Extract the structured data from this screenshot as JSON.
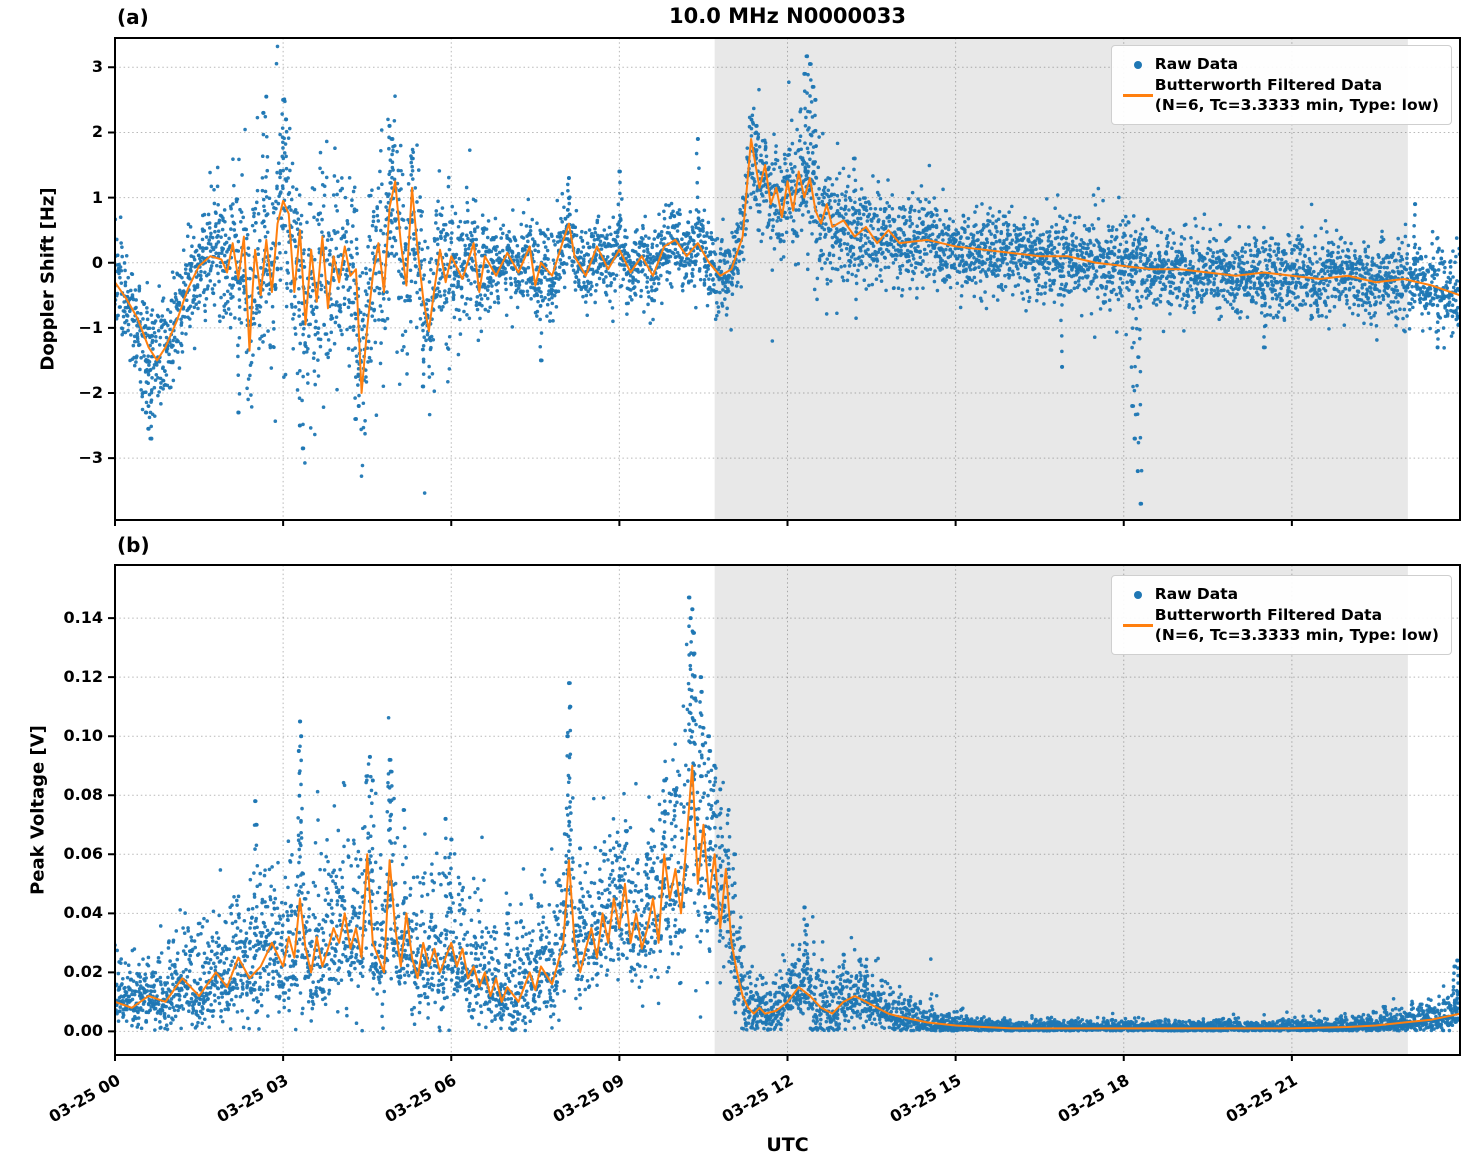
{
  "title": "10.0 MHz N0000033",
  "xlabel": "UTC",
  "panel_a": {
    "tag": "(a)",
    "ylabel": "Doppler Shift [Hz]"
  },
  "panel_b": {
    "tag": "(b)",
    "ylabel": "Peak Voltage [V]"
  },
  "legend": {
    "raw_label": "Raw Data",
    "filtered_label_line1": "Butterworth Filtered Data",
    "filtered_label_line2": "(N=6, Tc=3.3333 min, Type: low)"
  },
  "colors": {
    "raw": "#1f77b4",
    "filtered": "#ff7f0e",
    "shade": "rgba(0,0,0,0.09)",
    "grid": "rgba(0,0,0,0.28)",
    "spine": "#000000"
  },
  "x_axis": {
    "label": "UTC",
    "range_hours": [
      0,
      24
    ],
    "tick_hours": [
      0,
      3,
      6,
      9,
      12,
      15,
      18,
      21
    ],
    "tick_labels": [
      "03-25 00",
      "03-25 03",
      "03-25 06",
      "03-25 09",
      "03-25 12",
      "03-25 15",
      "03-25 18",
      "03-25 21"
    ],
    "shaded_region_hours": [
      10.7,
      23.07
    ]
  },
  "chart_data": [
    {
      "type": "scatter",
      "panel": "a",
      "ylabel": "Doppler Shift [Hz]",
      "ylim": [
        -3.95,
        3.45
      ],
      "ytick_values": [
        -3,
        -2,
        -1,
        0,
        1,
        2,
        3
      ],
      "ytick_labels": [
        "−3",
        "−2",
        "−1",
        "0",
        "1",
        "2",
        "3"
      ],
      "legend_position": "upper right",
      "grid": true,
      "series": [
        {
          "name": "Raw Data",
          "type": "scatter"
        },
        {
          "name": "Butterworth Filtered Data (N=6, Tc=3.3333 min, Type: low)",
          "type": "line"
        }
      ],
      "filtered_line": {
        "x": [
          0,
          0.2,
          0.4,
          0.6,
          0.75,
          0.9,
          1.1,
          1.3,
          1.5,
          1.7,
          1.9,
          2.0,
          2.1,
          2.2,
          2.3,
          2.4,
          2.45,
          2.5,
          2.6,
          2.7,
          2.8,
          2.9,
          3.0,
          3.1,
          3.2,
          3.3,
          3.4,
          3.5,
          3.6,
          3.7,
          3.8,
          3.9,
          4.0,
          4.1,
          4.2,
          4.3,
          4.4,
          4.5,
          4.6,
          4.7,
          4.8,
          4.9,
          5.0,
          5.1,
          5.2,
          5.3,
          5.4,
          5.5,
          5.6,
          5.7,
          5.8,
          5.9,
          6.0,
          6.2,
          6.4,
          6.5,
          6.6,
          6.8,
          7.0,
          7.2,
          7.4,
          7.5,
          7.6,
          7.8,
          8.0,
          8.1,
          8.2,
          8.4,
          8.6,
          8.8,
          9.0,
          9.2,
          9.4,
          9.6,
          9.8,
          10.0,
          10.2,
          10.4,
          10.6,
          10.8,
          11.0,
          11.2,
          11.35,
          11.5,
          11.6,
          11.7,
          11.8,
          11.9,
          12.0,
          12.1,
          12.2,
          12.3,
          12.4,
          12.5,
          12.6,
          12.7,
          12.8,
          13.0,
          13.2,
          13.4,
          13.6,
          13.8,
          14.0,
          14.5,
          15.0,
          15.5,
          16.0,
          16.5,
          17.0,
          17.5,
          18.0,
          18.5,
          19.0,
          19.5,
          20.0,
          20.5,
          21.0,
          21.5,
          22.0,
          22.5,
          23.0,
          23.5,
          24.0
        ],
        "y": [
          -0.3,
          -0.55,
          -0.85,
          -1.3,
          -1.5,
          -1.3,
          -0.9,
          -0.4,
          -0.05,
          0.1,
          0.05,
          -0.15,
          0.3,
          -0.25,
          0.4,
          -1.35,
          -0.5,
          0.2,
          -0.5,
          0.35,
          -0.45,
          0.6,
          0.95,
          0.75,
          -0.45,
          0.5,
          -0.95,
          0.2,
          -0.6,
          0.4,
          -0.7,
          0.1,
          -0.3,
          0.25,
          -0.2,
          -0.1,
          -2.0,
          -1.0,
          -0.2,
          0.3,
          -0.45,
          0.85,
          1.25,
          0.3,
          -0.35,
          1.15,
          0.2,
          -0.55,
          -1.05,
          -0.4,
          0.2,
          -0.3,
          0.1,
          -0.25,
          0.3,
          -0.45,
          0.1,
          -0.2,
          0.15,
          -0.15,
          0.25,
          -0.35,
          0.0,
          -0.2,
          0.35,
          0.6,
          0.1,
          -0.2,
          0.25,
          -0.1,
          0.2,
          -0.15,
          0.1,
          -0.2,
          0.25,
          0.35,
          0.1,
          0.3,
          0.0,
          -0.2,
          -0.1,
          0.4,
          1.9,
          1.15,
          1.5,
          0.9,
          1.15,
          0.7,
          1.25,
          0.8,
          1.4,
          1.0,
          1.3,
          0.8,
          0.6,
          0.9,
          0.55,
          0.65,
          0.4,
          0.55,
          0.3,
          0.5,
          0.3,
          0.35,
          0.25,
          0.2,
          0.15,
          0.1,
          0.1,
          0.0,
          -0.05,
          -0.1,
          -0.1,
          -0.15,
          -0.2,
          -0.15,
          -0.2,
          -0.25,
          -0.2,
          -0.3,
          -0.25,
          -0.35,
          -0.5
        ]
      },
      "raw_envelope": {
        "x": [
          0,
          0.5,
          1,
          1.5,
          2,
          2.5,
          3,
          3.5,
          4,
          4.5,
          5,
          5.5,
          6,
          6.5,
          7,
          7.5,
          8,
          8.5,
          9,
          9.5,
          10,
          10.5,
          11,
          11.5,
          12,
          12.5,
          13,
          13.5,
          14,
          15,
          16,
          17,
          18,
          19,
          20,
          21,
          22,
          23,
          24
        ],
        "spread": [
          0.35,
          0.45,
          0.4,
          0.3,
          0.55,
          0.7,
          0.8,
          0.85,
          0.7,
          0.75,
          0.8,
          0.7,
          0.55,
          0.4,
          0.3,
          0.35,
          0.35,
          0.3,
          0.3,
          0.28,
          0.3,
          0.3,
          0.3,
          0.45,
          0.5,
          0.55,
          0.45,
          0.4,
          0.35,
          0.3,
          0.3,
          0.3,
          0.33,
          0.3,
          0.28,
          0.3,
          0.3,
          0.3,
          0.35
        ]
      },
      "raw_outliers": [
        [
          0.55,
          -2.3
        ],
        [
          0.6,
          -2.55
        ],
        [
          0.65,
          -2.7
        ],
        [
          2.2,
          -2.3
        ],
        [
          2.65,
          2.3
        ],
        [
          2.7,
          2.55
        ],
        [
          3.0,
          2.5
        ],
        [
          3.05,
          2.2
        ],
        [
          3.3,
          -2.5
        ],
        [
          3.35,
          -2.85
        ],
        [
          4.3,
          -2.4
        ],
        [
          4.35,
          -2.2
        ],
        [
          4.9,
          2.1
        ],
        [
          4.95,
          1.9
        ],
        [
          5.3,
          1.6
        ],
        [
          5.5,
          -1.9
        ],
        [
          7.6,
          -1.5
        ],
        [
          8.1,
          1.3
        ],
        [
          9.0,
          1.4
        ],
        [
          10.4,
          1.9
        ],
        [
          11.45,
          2.1
        ],
        [
          12.3,
          2.9
        ],
        [
          12.35,
          3.17
        ],
        [
          12.4,
          3.05
        ],
        [
          12.45,
          2.7
        ],
        [
          12.5,
          2.5
        ],
        [
          13.2,
          1.6
        ],
        [
          16.9,
          -1.6
        ],
        [
          18.15,
          -2.2
        ],
        [
          18.2,
          -2.7
        ],
        [
          18.25,
          -3.2
        ],
        [
          18.3,
          -3.7
        ],
        [
          20.5,
          -1.3
        ],
        [
          23.2,
          0.9
        ],
        [
          23.6,
          -1.3
        ]
      ],
      "scatter_step_hours": 0.004,
      "noise_seed": 7
    },
    {
      "type": "scatter",
      "panel": "b",
      "ylabel": "Peak Voltage [V]",
      "ylim": [
        -0.008,
        0.158
      ],
      "ytick_values": [
        0.0,
        0.02,
        0.04,
        0.06,
        0.08,
        0.1,
        0.12,
        0.14
      ],
      "ytick_labels": [
        "0.00",
        "0.02",
        "0.04",
        "0.06",
        "0.08",
        "0.10",
        "0.12",
        "0.14"
      ],
      "legend_position": "upper right",
      "grid": true,
      "clamp_min": 0.0002,
      "series": [
        {
          "name": "Raw Data",
          "type": "scatter"
        },
        {
          "name": "Butterworth Filtered Data (N=6, Tc=3.3333 min, Type: low)",
          "type": "line"
        }
      ],
      "filtered_line": {
        "x": [
          0,
          0.3,
          0.6,
          0.9,
          1.2,
          1.5,
          1.8,
          2.0,
          2.2,
          2.4,
          2.6,
          2.8,
          3.0,
          3.1,
          3.2,
          3.3,
          3.4,
          3.5,
          3.6,
          3.7,
          3.8,
          3.9,
          4.0,
          4.1,
          4.2,
          4.3,
          4.4,
          4.5,
          4.6,
          4.7,
          4.8,
          4.9,
          5.0,
          5.1,
          5.2,
          5.3,
          5.4,
          5.5,
          5.6,
          5.7,
          5.8,
          5.9,
          6.0,
          6.1,
          6.2,
          6.3,
          6.4,
          6.5,
          6.6,
          6.7,
          6.8,
          6.9,
          7.0,
          7.2,
          7.4,
          7.5,
          7.6,
          7.8,
          8.0,
          8.1,
          8.2,
          8.3,
          8.4,
          8.5,
          8.6,
          8.7,
          8.8,
          8.9,
          9.0,
          9.1,
          9.2,
          9.3,
          9.4,
          9.5,
          9.6,
          9.7,
          9.8,
          9.9,
          10.0,
          10.1,
          10.2,
          10.3,
          10.4,
          10.5,
          10.6,
          10.7,
          10.8,
          10.9,
          11.0,
          11.1,
          11.2,
          11.3,
          11.4,
          11.5,
          11.6,
          11.8,
          12.0,
          12.2,
          12.4,
          12.6,
          12.8,
          13.0,
          13.2,
          13.4,
          13.6,
          13.8,
          14.0,
          14.5,
          15.0,
          15.5,
          16.0,
          17.0,
          18.0,
          19.0,
          20.0,
          21.0,
          22.0,
          22.5,
          23.0,
          23.5,
          24.0
        ],
        "y": [
          0.01,
          0.008,
          0.012,
          0.01,
          0.018,
          0.012,
          0.02,
          0.015,
          0.025,
          0.018,
          0.022,
          0.03,
          0.022,
          0.032,
          0.025,
          0.045,
          0.028,
          0.02,
          0.032,
          0.022,
          0.028,
          0.035,
          0.03,
          0.04,
          0.028,
          0.035,
          0.025,
          0.06,
          0.03,
          0.025,
          0.02,
          0.058,
          0.035,
          0.022,
          0.04,
          0.025,
          0.018,
          0.03,
          0.022,
          0.028,
          0.02,
          0.025,
          0.03,
          0.022,
          0.028,
          0.018,
          0.022,
          0.015,
          0.02,
          0.012,
          0.018,
          0.01,
          0.015,
          0.01,
          0.02,
          0.014,
          0.022,
          0.016,
          0.03,
          0.058,
          0.03,
          0.02,
          0.028,
          0.035,
          0.025,
          0.04,
          0.03,
          0.045,
          0.035,
          0.05,
          0.03,
          0.04,
          0.028,
          0.035,
          0.045,
          0.03,
          0.06,
          0.045,
          0.055,
          0.04,
          0.065,
          0.09,
          0.05,
          0.07,
          0.045,
          0.06,
          0.035,
          0.055,
          0.03,
          0.02,
          0.012,
          0.008,
          0.006,
          0.008,
          0.006,
          0.007,
          0.01,
          0.015,
          0.012,
          0.008,
          0.006,
          0.01,
          0.012,
          0.01,
          0.008,
          0.006,
          0.005,
          0.003,
          0.002,
          0.0015,
          0.001,
          0.001,
          0.001,
          0.001,
          0.001,
          0.001,
          0.0015,
          0.002,
          0.003,
          0.004,
          0.006
        ]
      },
      "raw_envelope": {
        "x": [
          0,
          0.5,
          1,
          1.5,
          2,
          2.5,
          3,
          3.5,
          4,
          4.5,
          5,
          5.5,
          6,
          6.5,
          7,
          7.5,
          8,
          8.5,
          9,
          9.5,
          10,
          10.3,
          10.6,
          11,
          11.3,
          11.6,
          12,
          12.5,
          13,
          13.5,
          14,
          15,
          16,
          17,
          18,
          19,
          20,
          21,
          22,
          23,
          23.5,
          24
        ],
        "spread": [
          0.005,
          0.005,
          0.006,
          0.007,
          0.008,
          0.01,
          0.011,
          0.012,
          0.012,
          0.012,
          0.012,
          0.011,
          0.01,
          0.009,
          0.008,
          0.009,
          0.011,
          0.011,
          0.012,
          0.012,
          0.014,
          0.018,
          0.016,
          0.01,
          0.005,
          0.004,
          0.004,
          0.006,
          0.005,
          0.004,
          0.003,
          0.0015,
          0.001,
          0.001,
          0.001,
          0.001,
          0.001,
          0.001,
          0.0012,
          0.0018,
          0.0025,
          0.0035
        ]
      },
      "raw_outliers": [
        [
          2.5,
          0.078
        ],
        [
          2.52,
          0.07
        ],
        [
          3.28,
          0.095
        ],
        [
          3.3,
          0.105
        ],
        [
          3.32,
          0.1
        ],
        [
          4.55,
          0.093
        ],
        [
          4.6,
          0.085
        ],
        [
          4.9,
          0.092
        ],
        [
          4.92,
          0.088
        ],
        [
          5.15,
          0.075
        ],
        [
          5.9,
          0.072
        ],
        [
          6.0,
          0.065
        ],
        [
          7.0,
          0.04
        ],
        [
          8.08,
          0.1
        ],
        [
          8.1,
          0.118
        ],
        [
          8.12,
          0.11
        ],
        [
          8.3,
          0.062
        ],
        [
          9.0,
          0.063
        ],
        [
          9.5,
          0.06
        ],
        [
          9.8,
          0.085
        ],
        [
          10.0,
          0.08
        ],
        [
          10.25,
          0.147
        ],
        [
          10.27,
          0.14
        ],
        [
          10.3,
          0.143
        ],
        [
          10.32,
          0.135
        ],
        [
          10.34,
          0.128
        ],
        [
          10.45,
          0.12
        ],
        [
          10.47,
          0.115
        ],
        [
          10.6,
          0.1
        ],
        [
          10.62,
          0.095
        ],
        [
          10.7,
          0.09
        ],
        [
          10.8,
          0.082
        ],
        [
          10.95,
          0.075
        ],
        [
          11.05,
          0.06
        ],
        [
          12.3,
          0.042
        ],
        [
          12.35,
          0.036
        ],
        [
          13.0,
          0.026
        ],
        [
          13.4,
          0.022
        ],
        [
          23.9,
          0.022
        ],
        [
          23.95,
          0.024
        ]
      ],
      "scatter_step_hours": 0.004,
      "noise_seed": 13
    }
  ]
}
